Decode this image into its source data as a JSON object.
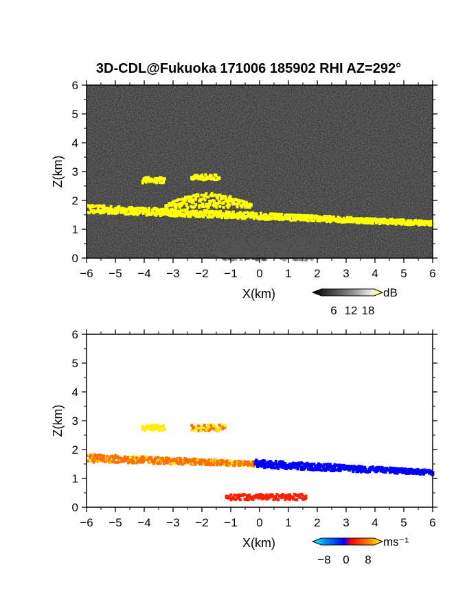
{
  "chart_data": [
    {
      "type": "heatmap",
      "title": "3D-CDL@Fukuoka 171006 185902 RHI AZ=292°",
      "quantity": "backscatter intensity",
      "xlabel": "X(km)",
      "ylabel": "Z(km)",
      "xlim": [
        -6,
        6
      ],
      "ylim": [
        0,
        6
      ],
      "x_ticks": [
        "−6",
        "−5",
        "−4",
        "−3",
        "−2",
        "−1",
        "0",
        "1",
        "2",
        "3",
        "4",
        "5",
        "6"
      ],
      "y_ticks": [
        "0",
        "1",
        "2",
        "3",
        "4",
        "5",
        "6"
      ],
      "background": "noise (dark gray)",
      "colorbar": {
        "unit": "dB",
        "tick_labels": [
          "6",
          "12",
          "18"
        ],
        "colors": [
          "#000000",
          "#777777",
          "#dddddd",
          "#ffff00"
        ]
      },
      "features": [
        {
          "name": "main layer",
          "x_start": -6.0,
          "x_end": 6.0,
          "z_center_start": 1.75,
          "z_center_end": 1.25,
          "value_db": 18
        },
        {
          "name": "elevated patch",
          "x_start": -4.1,
          "x_end": -3.3,
          "z": 2.75,
          "value_db": 18
        },
        {
          "name": "elevated patch",
          "x_start": -2.4,
          "x_end": -1.4,
          "z": 2.85,
          "value_db": 18
        },
        {
          "name": "plume",
          "x_start": -3.3,
          "x_end": -0.3,
          "z_top": 2.3,
          "value_db": 18
        },
        {
          "name": "weak near-ground return",
          "x_start": -1.5,
          "x_end": 2.0,
          "z_bottom": 0.0,
          "z_top": 0.7,
          "value_db": 8
        }
      ]
    },
    {
      "type": "heatmap",
      "quantity": "Doppler velocity",
      "xlabel": "X(km)",
      "ylabel": "Z(km)",
      "xlim": [
        -6,
        6
      ],
      "ylim": [
        0,
        6
      ],
      "x_ticks": [
        "−6",
        "−5",
        "−4",
        "−3",
        "−2",
        "−1",
        "0",
        "1",
        "2",
        "3",
        "4",
        "5",
        "6"
      ],
      "y_ticks": [
        "0",
        "1",
        "2",
        "3",
        "4",
        "5",
        "6"
      ],
      "colorbar": {
        "unit": "ms⁻¹",
        "tick_labels": [
          "−8",
          "0",
          "8"
        ],
        "colors": [
          "#00ffff",
          "#0080ff",
          "#0000ff",
          "#ff0000",
          "#ff8000",
          "#ffff00"
        ]
      },
      "features": [
        {
          "name": "main layer (west)",
          "x_start": -6.0,
          "x_end": -0.2,
          "z_center_start": 1.75,
          "z_center_end": 1.55,
          "velocity": 5
        },
        {
          "name": "main layer (east)",
          "x_start": -0.2,
          "x_end": 6.0,
          "z_center_start": 1.55,
          "z_center_end": 1.25,
          "velocity": -5
        },
        {
          "name": "elevated patch",
          "x_start": -4.1,
          "x_end": -3.3,
          "z": 2.8,
          "velocity": 8
        },
        {
          "name": "elevated patch",
          "x_start": -2.4,
          "x_end": -1.2,
          "z": 2.8,
          "velocity": 6
        },
        {
          "name": "low echoes",
          "x_start": -1.2,
          "x_end": 1.6,
          "z": 0.4,
          "velocity": 2
        }
      ]
    }
  ]
}
